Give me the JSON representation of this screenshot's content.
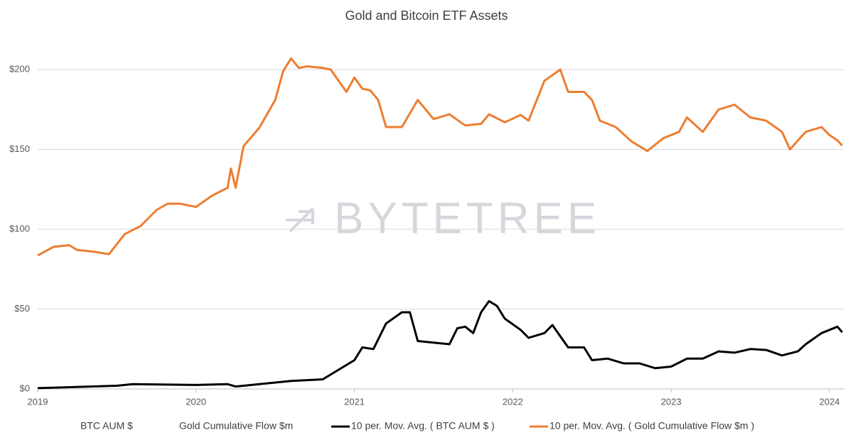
{
  "chart_data": {
    "type": "line",
    "title": "Gold and Bitcoin ETF Assets",
    "watermark": "BYTETREE",
    "xlim": [
      2019,
      2024.09
    ],
    "xticks": [
      2019,
      2020,
      2021,
      2022,
      2023,
      2024
    ],
    "ylim": [
      0,
      220
    ],
    "yticks": [
      {
        "value": 0,
        "label": "$0"
      },
      {
        "value": 50,
        "label": "$50"
      },
      {
        "value": 100,
        "label": "$100"
      },
      {
        "value": 150,
        "label": "$150"
      },
      {
        "value": 200,
        "label": "$200"
      }
    ],
    "grid": true,
    "legend": "bottom",
    "hidden_series": [
      {
        "name": "BTC AUM $"
      },
      {
        "name": "Gold Cumulative Flow $m"
      }
    ],
    "series": [
      {
        "name": "10 per. Mov. Avg. ( BTC AUM $ )",
        "color": "#000000",
        "x": [
          2019.0,
          2019.5,
          2019.6,
          2020.0,
          2020.2,
          2020.25,
          2020.5,
          2020.6,
          2020.8,
          2020.9,
          2021.0,
          2021.05,
          2021.12,
          2021.2,
          2021.3,
          2021.35,
          2021.4,
          2021.5,
          2021.6,
          2021.65,
          2021.7,
          2021.75,
          2021.8,
          2021.85,
          2021.9,
          2021.95,
          2022.05,
          2022.1,
          2022.2,
          2022.25,
          2022.35,
          2022.45,
          2022.5,
          2022.6,
          2022.7,
          2022.8,
          2022.9,
          2023.0,
          2023.1,
          2023.2,
          2023.3,
          2023.4,
          2023.5,
          2023.6,
          2023.7,
          2023.8,
          2023.85,
          2023.95,
          2024.0,
          2024.05,
          2024.08
        ],
        "values": [
          0.5,
          2,
          3,
          2.5,
          3,
          1.5,
          4,
          5,
          6,
          12,
          18,
          26,
          25,
          41,
          48,
          48,
          30,
          29,
          28,
          38,
          39,
          35,
          48,
          55,
          52,
          44,
          37,
          32,
          35,
          40,
          26,
          26,
          18,
          19,
          16,
          16,
          13,
          14,
          19,
          19,
          23.5,
          22.7,
          25,
          24.4,
          21,
          23.5,
          28,
          35,
          37,
          39,
          35.5
        ]
      },
      {
        "name": "10 per. Mov. Avg. ( Gold Cumulative Flow $m )",
        "color": "#ed7d31",
        "x": [
          2019.0,
          2019.1,
          2019.2,
          2019.25,
          2019.35,
          2019.45,
          2019.55,
          2019.65,
          2019.75,
          2019.82,
          2019.9,
          2020.0,
          2020.1,
          2020.2,
          2020.22,
          2020.25,
          2020.3,
          2020.4,
          2020.5,
          2020.55,
          2020.6,
          2020.65,
          2020.7,
          2020.8,
          2020.85,
          2020.95,
          2021.0,
          2021.05,
          2021.1,
          2021.15,
          2021.2,
          2021.3,
          2021.4,
          2021.5,
          2021.6,
          2021.7,
          2021.8,
          2021.85,
          2021.95,
          2022.05,
          2022.1,
          2022.2,
          2022.3,
          2022.35,
          2022.45,
          2022.5,
          2022.55,
          2022.65,
          2022.75,
          2022.85,
          2022.95,
          2023.05,
          2023.1,
          2023.2,
          2023.3,
          2023.4,
          2023.5,
          2023.6,
          2023.7,
          2023.75,
          2023.85,
          2023.95,
          2024.0,
          2024.05,
          2024.08
        ],
        "values": [
          83.6,
          89,
          90,
          87,
          86,
          84.4,
          97,
          102,
          112,
          116,
          116,
          114,
          121,
          126,
          138,
          126,
          152,
          163.6,
          181,
          199,
          207,
          201,
          202,
          201,
          200,
          186,
          195,
          188,
          187,
          181,
          164,
          164,
          181,
          169,
          172,
          165,
          166,
          172,
          167,
          171.6,
          168,
          193,
          200,
          186,
          186,
          181,
          168,
          164,
          155,
          149,
          157,
          161,
          170,
          161,
          175,
          178,
          170,
          168,
          161,
          150,
          161,
          164,
          159,
          155.6,
          152.4
        ]
      }
    ]
  }
}
